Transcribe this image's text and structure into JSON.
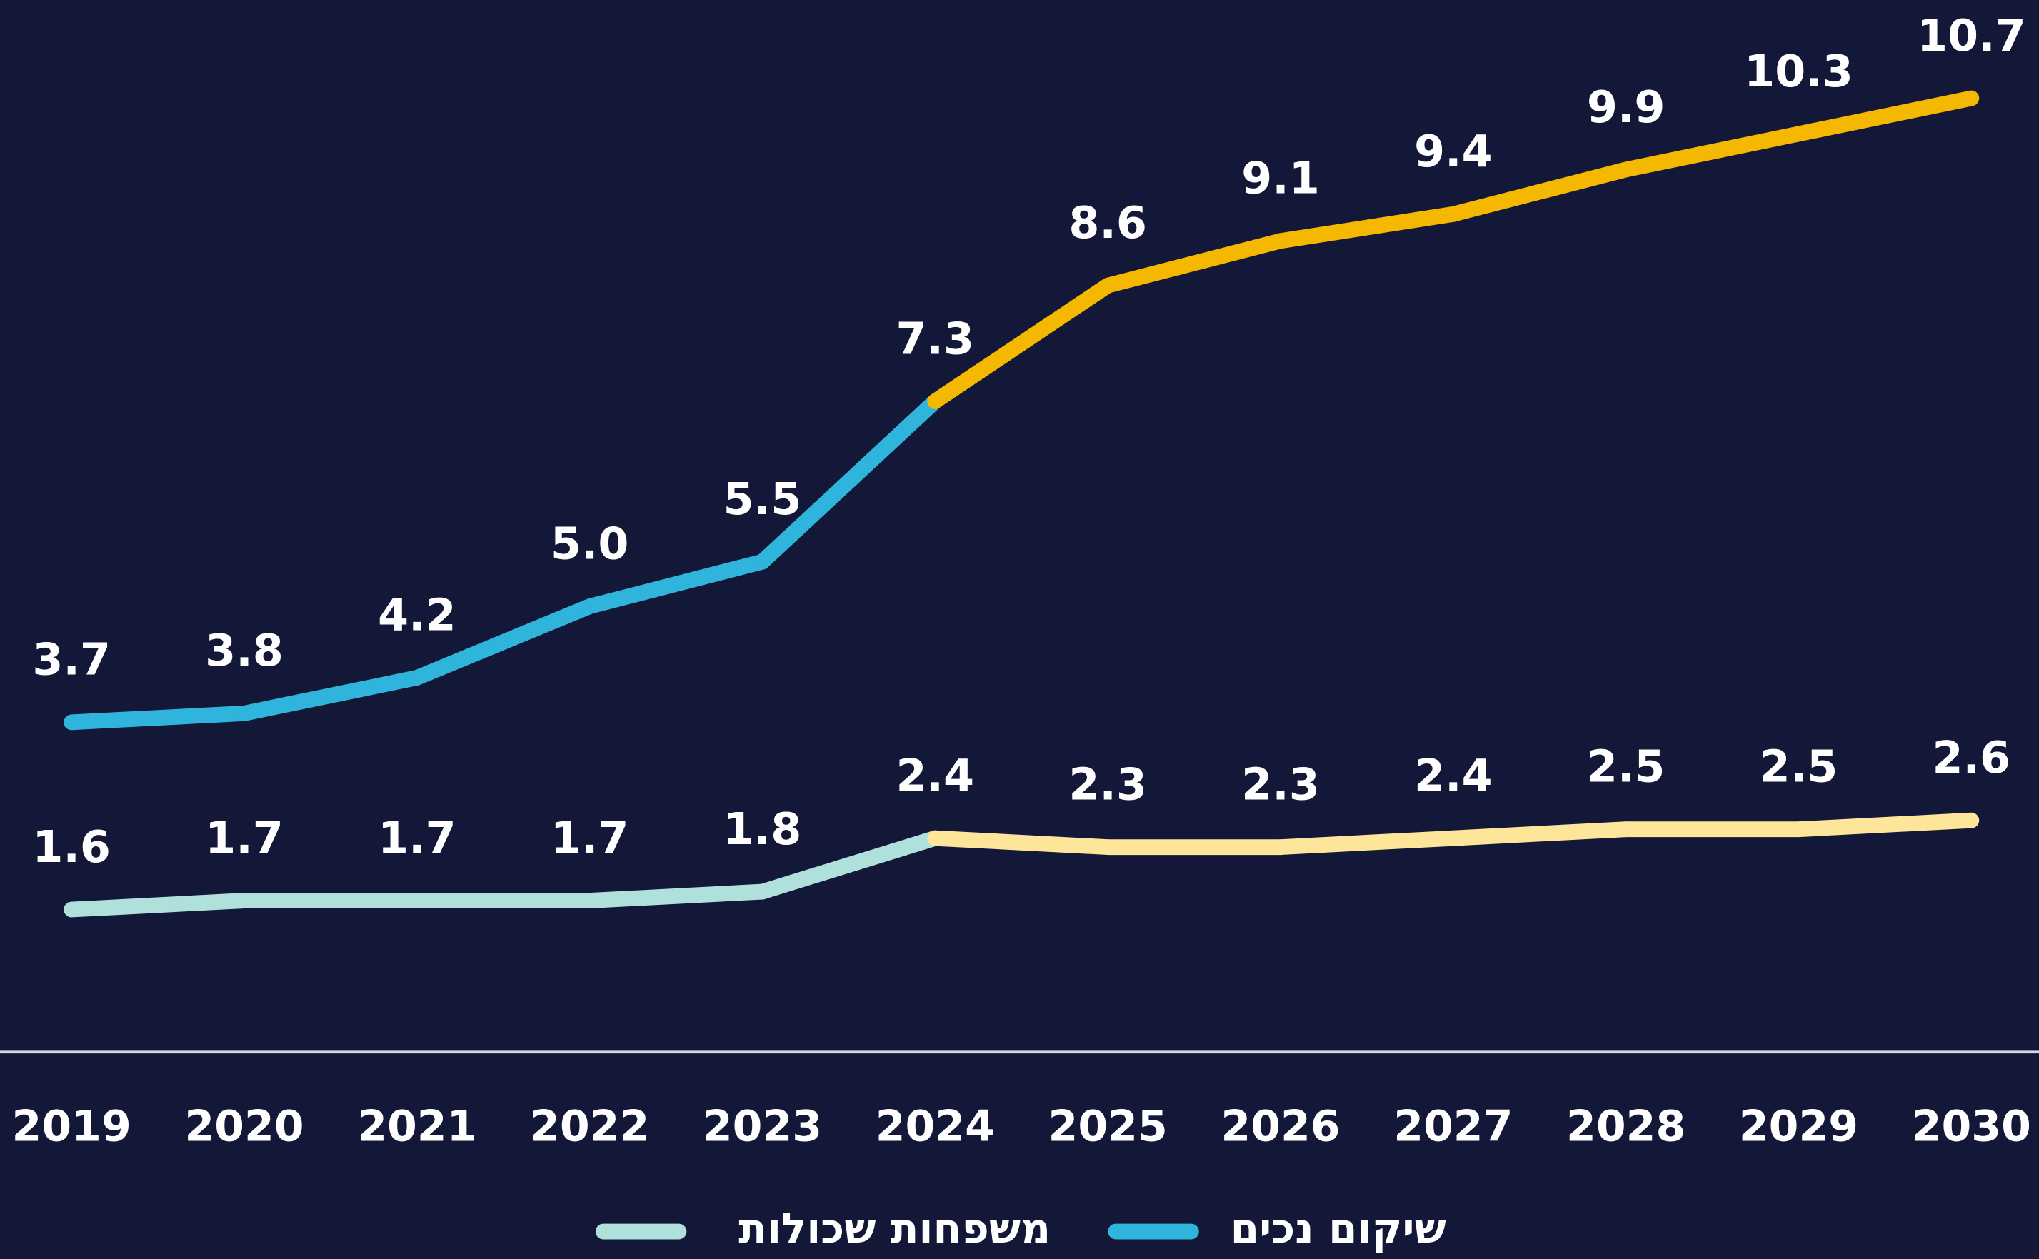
{
  "chart_data": {
    "type": "line",
    "categories": [
      "2019",
      "2020",
      "2021",
      "2022",
      "2023",
      "2024",
      "2025",
      "2026",
      "2027",
      "2028",
      "2029",
      "2030"
    ],
    "series": [
      {
        "name": "שיקום נכים",
        "color": "#2fb4dc",
        "values": [
          3.7,
          3.8,
          4.2,
          5.0,
          5.5,
          7.3,
          8.6,
          9.1,
          9.4,
          9.9,
          10.3,
          10.7
        ],
        "value_labels": [
          "3.7",
          "3.8",
          "4.2",
          "5.0",
          "5.5",
          "7.3",
          "8.6",
          "9.1",
          "9.4",
          "9.9",
          "10.3",
          "10.7"
        ],
        "segment_colors": [
          "#2fb4dc",
          "#2fb4dc",
          "#2fb4dc",
          "#2fb4dc",
          "#2fb4dc",
          "#f5b800",
          "#f5b800",
          "#f5b800",
          "#f5b800",
          "#f5b800",
          "#f5b800"
        ]
      },
      {
        "name": "משפחות שכולות",
        "color": "#b0e0dc",
        "values": [
          1.6,
          1.7,
          1.7,
          1.7,
          1.8,
          2.4,
          2.3,
          2.3,
          2.4,
          2.5,
          2.5,
          2.6
        ],
        "segment_colors": [
          "#b0e0dc",
          "#b0e0dc",
          "#b0e0dc",
          "#b0e0dc",
          "#b0e0dc",
          "#fde69a",
          "#fde69a",
          "#fde69a",
          "#fde69a",
          "#fde69a",
          "#fde69a"
        ]
      }
    ],
    "ylim": [
      0,
      11.8
    ]
  }
}
